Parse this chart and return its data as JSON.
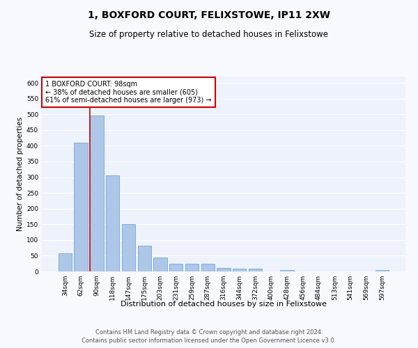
{
  "title": "1, BOXFORD COURT, FELIXSTOWE, IP11 2XW",
  "subtitle": "Size of property relative to detached houses in Felixstowe",
  "xlabel": "Distribution of detached houses by size in Felixstowe",
  "ylabel": "Number of detached properties",
  "categories": [
    "34sqm",
    "62sqm",
    "90sqm",
    "118sqm",
    "147sqm",
    "175sqm",
    "203sqm",
    "231sqm",
    "259sqm",
    "287sqm",
    "316sqm",
    "344sqm",
    "372sqm",
    "400sqm",
    "428sqm",
    "456sqm",
    "484sqm",
    "513sqm",
    "541sqm",
    "569sqm",
    "597sqm"
  ],
  "values": [
    58,
    410,
    495,
    305,
    150,
    82,
    45,
    25,
    25,
    25,
    10,
    8,
    8,
    0,
    5,
    0,
    0,
    0,
    0,
    0,
    5
  ],
  "bar_color": "#aec6e8",
  "bar_edgecolor": "#5a9fd4",
  "highlight_line_color": "#cc0000",
  "annotation_text": "1 BOXFORD COURT: 98sqm\n← 38% of detached houses are smaller (605)\n61% of semi-detached houses are larger (973) →",
  "annotation_box_color": "#ffffff",
  "annotation_box_edgecolor": "#cc0000",
  "ylim": [
    0,
    620
  ],
  "yticks": [
    0,
    50,
    100,
    150,
    200,
    250,
    300,
    350,
    400,
    450,
    500,
    550,
    600
  ],
  "footer_line1": "Contains HM Land Registry data © Crown copyright and database right 2024.",
  "footer_line2": "Contains public sector information licensed under the Open Government Licence v3.0.",
  "fig_background_color": "#f8f8ff",
  "ax_background_color": "#eef2fa",
  "grid_color": "#ffffff",
  "title_fontsize": 10,
  "subtitle_fontsize": 8.5,
  "xlabel_fontsize": 8,
  "ylabel_fontsize": 7.5,
  "tick_fontsize": 6.5,
  "annotation_fontsize": 7,
  "footer_fontsize": 6
}
